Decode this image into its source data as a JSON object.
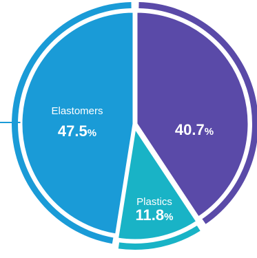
{
  "chart_data": {
    "type": "pie",
    "slices": [
      {
        "label": "",
        "value": 40.7,
        "value_text": "40.7",
        "color": "#5a4aa8"
      },
      {
        "label": "Plastics",
        "value": 11.8,
        "value_text": "11.8",
        "color": "#19b3c6"
      },
      {
        "label": "Elastomers",
        "value": 47.5,
        "value_text": "47.5",
        "color": "#1a9bd7"
      }
    ],
    "unit": "%",
    "title": "",
    "legend": "none",
    "leader_line_color": "#1a9bd7"
  }
}
